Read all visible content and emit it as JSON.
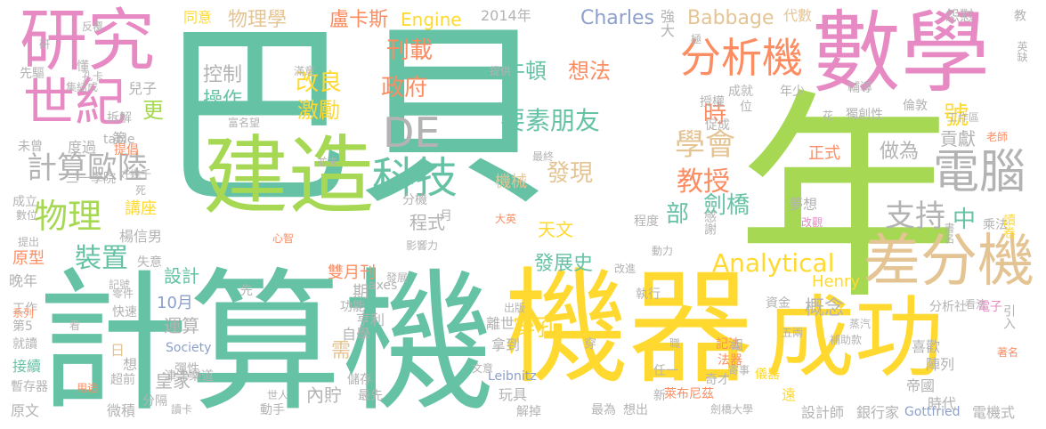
{
  "palette": {
    "green": "#66c2a5",
    "lime": "#a6d854",
    "yellow": "#ffd92f",
    "pink": "#e78ac3",
    "orange": "#fc8d62",
    "blue": "#8da0cb",
    "tan": "#e5c494",
    "gray": "#b3b3b3"
  },
  "words": [
    "巴貝",
    "年",
    "計算機",
    "機器",
    "成功",
    "數學",
    "建造",
    "研究",
    "差分機",
    "世紀",
    "電腦",
    "分析機",
    "計算歐陸",
    "物理",
    "科技",
    "號",
    "學會",
    "支持",
    "DE",
    "要素朋友",
    "牛頓",
    "想法",
    "中",
    "教授",
    "刊載",
    "政府",
    "改良",
    "激勵",
    "控制",
    "操作",
    "發現",
    "Analytical",
    "Charles",
    "Babbage",
    "Engine",
    "物理學",
    "盧卡斯",
    "時",
    "部",
    "劍橋",
    "發展史",
    "天文",
    "程式",
    "講座",
    "楊信男",
    "原型",
    "裝置",
    "概念",
    "貢獻",
    "做為",
    "正式",
    "設計",
    "運算",
    "皇家",
    "10月",
    "雙月刊",
    "期",
    "內貯",
    "需",
    "Henry",
    "2014年",
    "同意",
    "機械",
    "Society",
    "Leibnitz",
    "玩具",
    "自學",
    "萊布尼茲",
    "Gottfried",
    "設計師",
    "銀行家",
    "電機式",
    "喜歡",
    "陣列",
    "帝國",
    "離世",
    "拿到",
    "執行",
    "時代",
    "記法",
    "法器",
    "穿孔",
    "亨利",
    "axes",
    "津津樂道",
    "晚年",
    "工作",
    "第5",
    "就讀",
    "接續",
    "暫存器",
    "原文",
    "微積",
    "讀卡",
    "動手",
    "最為",
    "想出",
    "解掉",
    "代數",
    "怨懟",
    "教",
    "英缺",
    "強大",
    "授權",
    "成就",
    "年少",
    "位",
    "倫敦",
    "工作區",
    "老師",
    "電子",
    "書名",
    "乘法",
    "讀卷",
    "著名",
    "引入",
    "分析社",
    "看法",
    "感謝",
    "程度",
    "夢想",
    "改觀",
    "分機",
    "大英",
    "兒子",
    "更",
    "拆解",
    "第",
    "度過",
    "未曾",
    "table",
    "提倡",
    "成立",
    "數位",
    "提出",
    "記號",
    "快速",
    "零件",
    "系列",
    "超前",
    "分隔",
    "日",
    "想",
    "先",
    "失意",
    "功能",
    "儲存",
    "文意",
    "出版",
    "穿",
    "組",
    "任一",
    "寄事",
    "奇才",
    "儀器",
    "新",
    "遠",
    "劍橋大學",
    "最先",
    "世人",
    "彈性",
    "用途",
    "看",
    "研",
    "先驅",
    "反覆",
    "懂",
    "孔卡",
    "集結成",
    "三一學院",
    "好幾千",
    "死",
    "並未",
    "滿意",
    "富名望",
    "提供",
    "極",
    "獨創性",
    "花",
    "促成",
    "輔導",
    "發展",
    "影響力",
    "最終",
    "改進",
    "資金",
    "補助款",
    "蒸汽",
    "五兩",
    "職",
    "心智",
    "月",
    "動力"
  ]
}
